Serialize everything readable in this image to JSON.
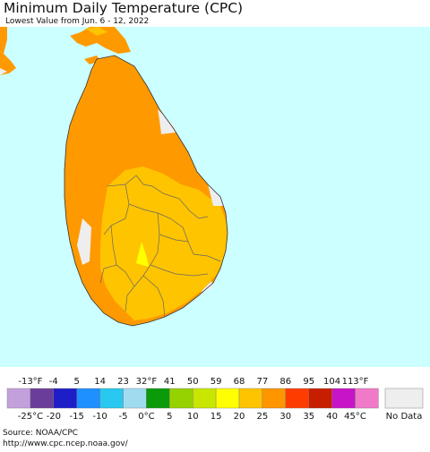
{
  "title": "Minimum Daily Temperature (CPC)",
  "subtitle": "Lowest Value from Jun. 6 - 12, 2022",
  "legend": {
    "fahrenheit_ticks": [
      "-13°F",
      "-4",
      "5",
      "14",
      "23",
      "32°F",
      "41",
      "50",
      "59",
      "68",
      "77",
      "86",
      "95",
      "104",
      "113°F"
    ],
    "celsius_ticks": [
      "-25°C",
      "-20",
      "-15",
      "-10",
      "-5",
      "0°C",
      "5",
      "10",
      "15",
      "20",
      "25",
      "30",
      "35",
      "40",
      "45°C"
    ],
    "colors": [
      "#c3a0dc",
      "#6a3d9a",
      "#1e1ec8",
      "#1e90ff",
      "#28c8f0",
      "#a0dcf0",
      "#0a9a0a",
      "#96d200",
      "#c8e600",
      "#ffff00",
      "#ffc400",
      "#ff9600",
      "#ff3c00",
      "#c81e00",
      "#c814c8",
      "#f07ac8"
    ],
    "no_data_label": "No Data",
    "no_data_color": "#eeeeee"
  },
  "map_colors": {
    "ocean": "#ccffff",
    "band_77_86": "#ff9900",
    "band_68_77": "#ffc400",
    "band_59_68": "#ffff00",
    "no_data": "#eeeeee",
    "boundary": "#555555"
  },
  "source": {
    "line1": "Source: NOAA/CPC",
    "line2": "http://www.cpc.ncep.noaa.gov/"
  }
}
